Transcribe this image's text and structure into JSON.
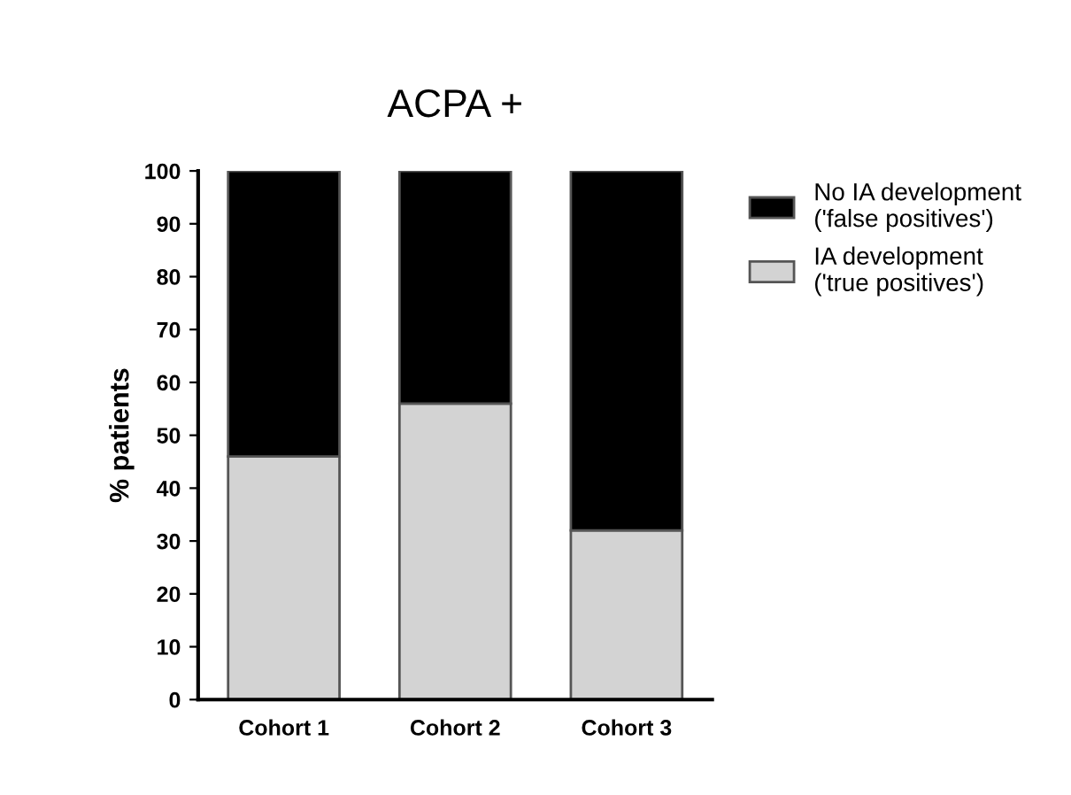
{
  "chart_data": {
    "type": "bar",
    "title": "ACPA +",
    "ylabel": "% patients",
    "categories": [
      "Cohort 1",
      "Cohort 2",
      "Cohort 3"
    ],
    "stacked": true,
    "series": [
      {
        "name": "IA development\n('true positives')",
        "color": "#d3d3d3",
        "values": [
          46,
          56,
          32
        ]
      },
      {
        "name": "No IA development\n('false positives')",
        "color": "#000000",
        "values": [
          54,
          44,
          68
        ]
      }
    ],
    "ylim": [
      0,
      100
    ],
    "yticks": [
      0,
      10,
      20,
      30,
      40,
      50,
      60,
      70,
      80,
      90,
      100
    ],
    "grid": false,
    "legend": "right"
  }
}
